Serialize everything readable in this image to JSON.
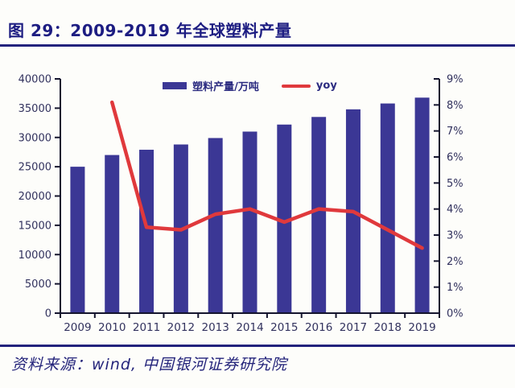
{
  "figure": {
    "title": "图 29：2009-2019 年全球塑料产量",
    "source": "资料来源：wind, 中国银河证券研究院"
  },
  "colors": {
    "title_navy": "#1d1d82",
    "divider_navy": "#23237d",
    "bar_fill": "#3b3795",
    "line_red": "#e0393c",
    "axis_line": "#15152e",
    "tick_text": "#32325e",
    "background": "#fdfdfa"
  },
  "chart_data": {
    "type": "bar",
    "title": "图 29：2009-2019 年全球塑料产量",
    "categories": [
      "2009",
      "2010",
      "2011",
      "2012",
      "2013",
      "2014",
      "2015",
      "2016",
      "2017",
      "2018",
      "2019"
    ],
    "series": [
      {
        "name": "塑料产量/万吨",
        "type": "bar",
        "axis": "left",
        "values": [
          25000,
          27000,
          27900,
          28800,
          29900,
          31000,
          32200,
          33500,
          34800,
          35800,
          36800
        ]
      },
      {
        "name": "yoy",
        "type": "line",
        "axis": "right",
        "values": [
          null,
          8.1,
          3.3,
          3.2,
          3.8,
          4.0,
          3.5,
          4.0,
          3.9,
          3.2,
          2.5
        ]
      }
    ],
    "left_axis": {
      "min": 0,
      "max": 40000,
      "step": 5000,
      "tick_labels": [
        "0",
        "5000",
        "10000",
        "15000",
        "20000",
        "25000",
        "30000",
        "35000",
        "40000"
      ]
    },
    "right_axis": {
      "min": 0,
      "max": 9,
      "step": 1,
      "tick_labels": [
        "0%",
        "1%",
        "2%",
        "3%",
        "4%",
        "5%",
        "6%",
        "7%",
        "8%",
        "9%"
      ]
    },
    "grid": false,
    "legend_position": "top-center"
  }
}
